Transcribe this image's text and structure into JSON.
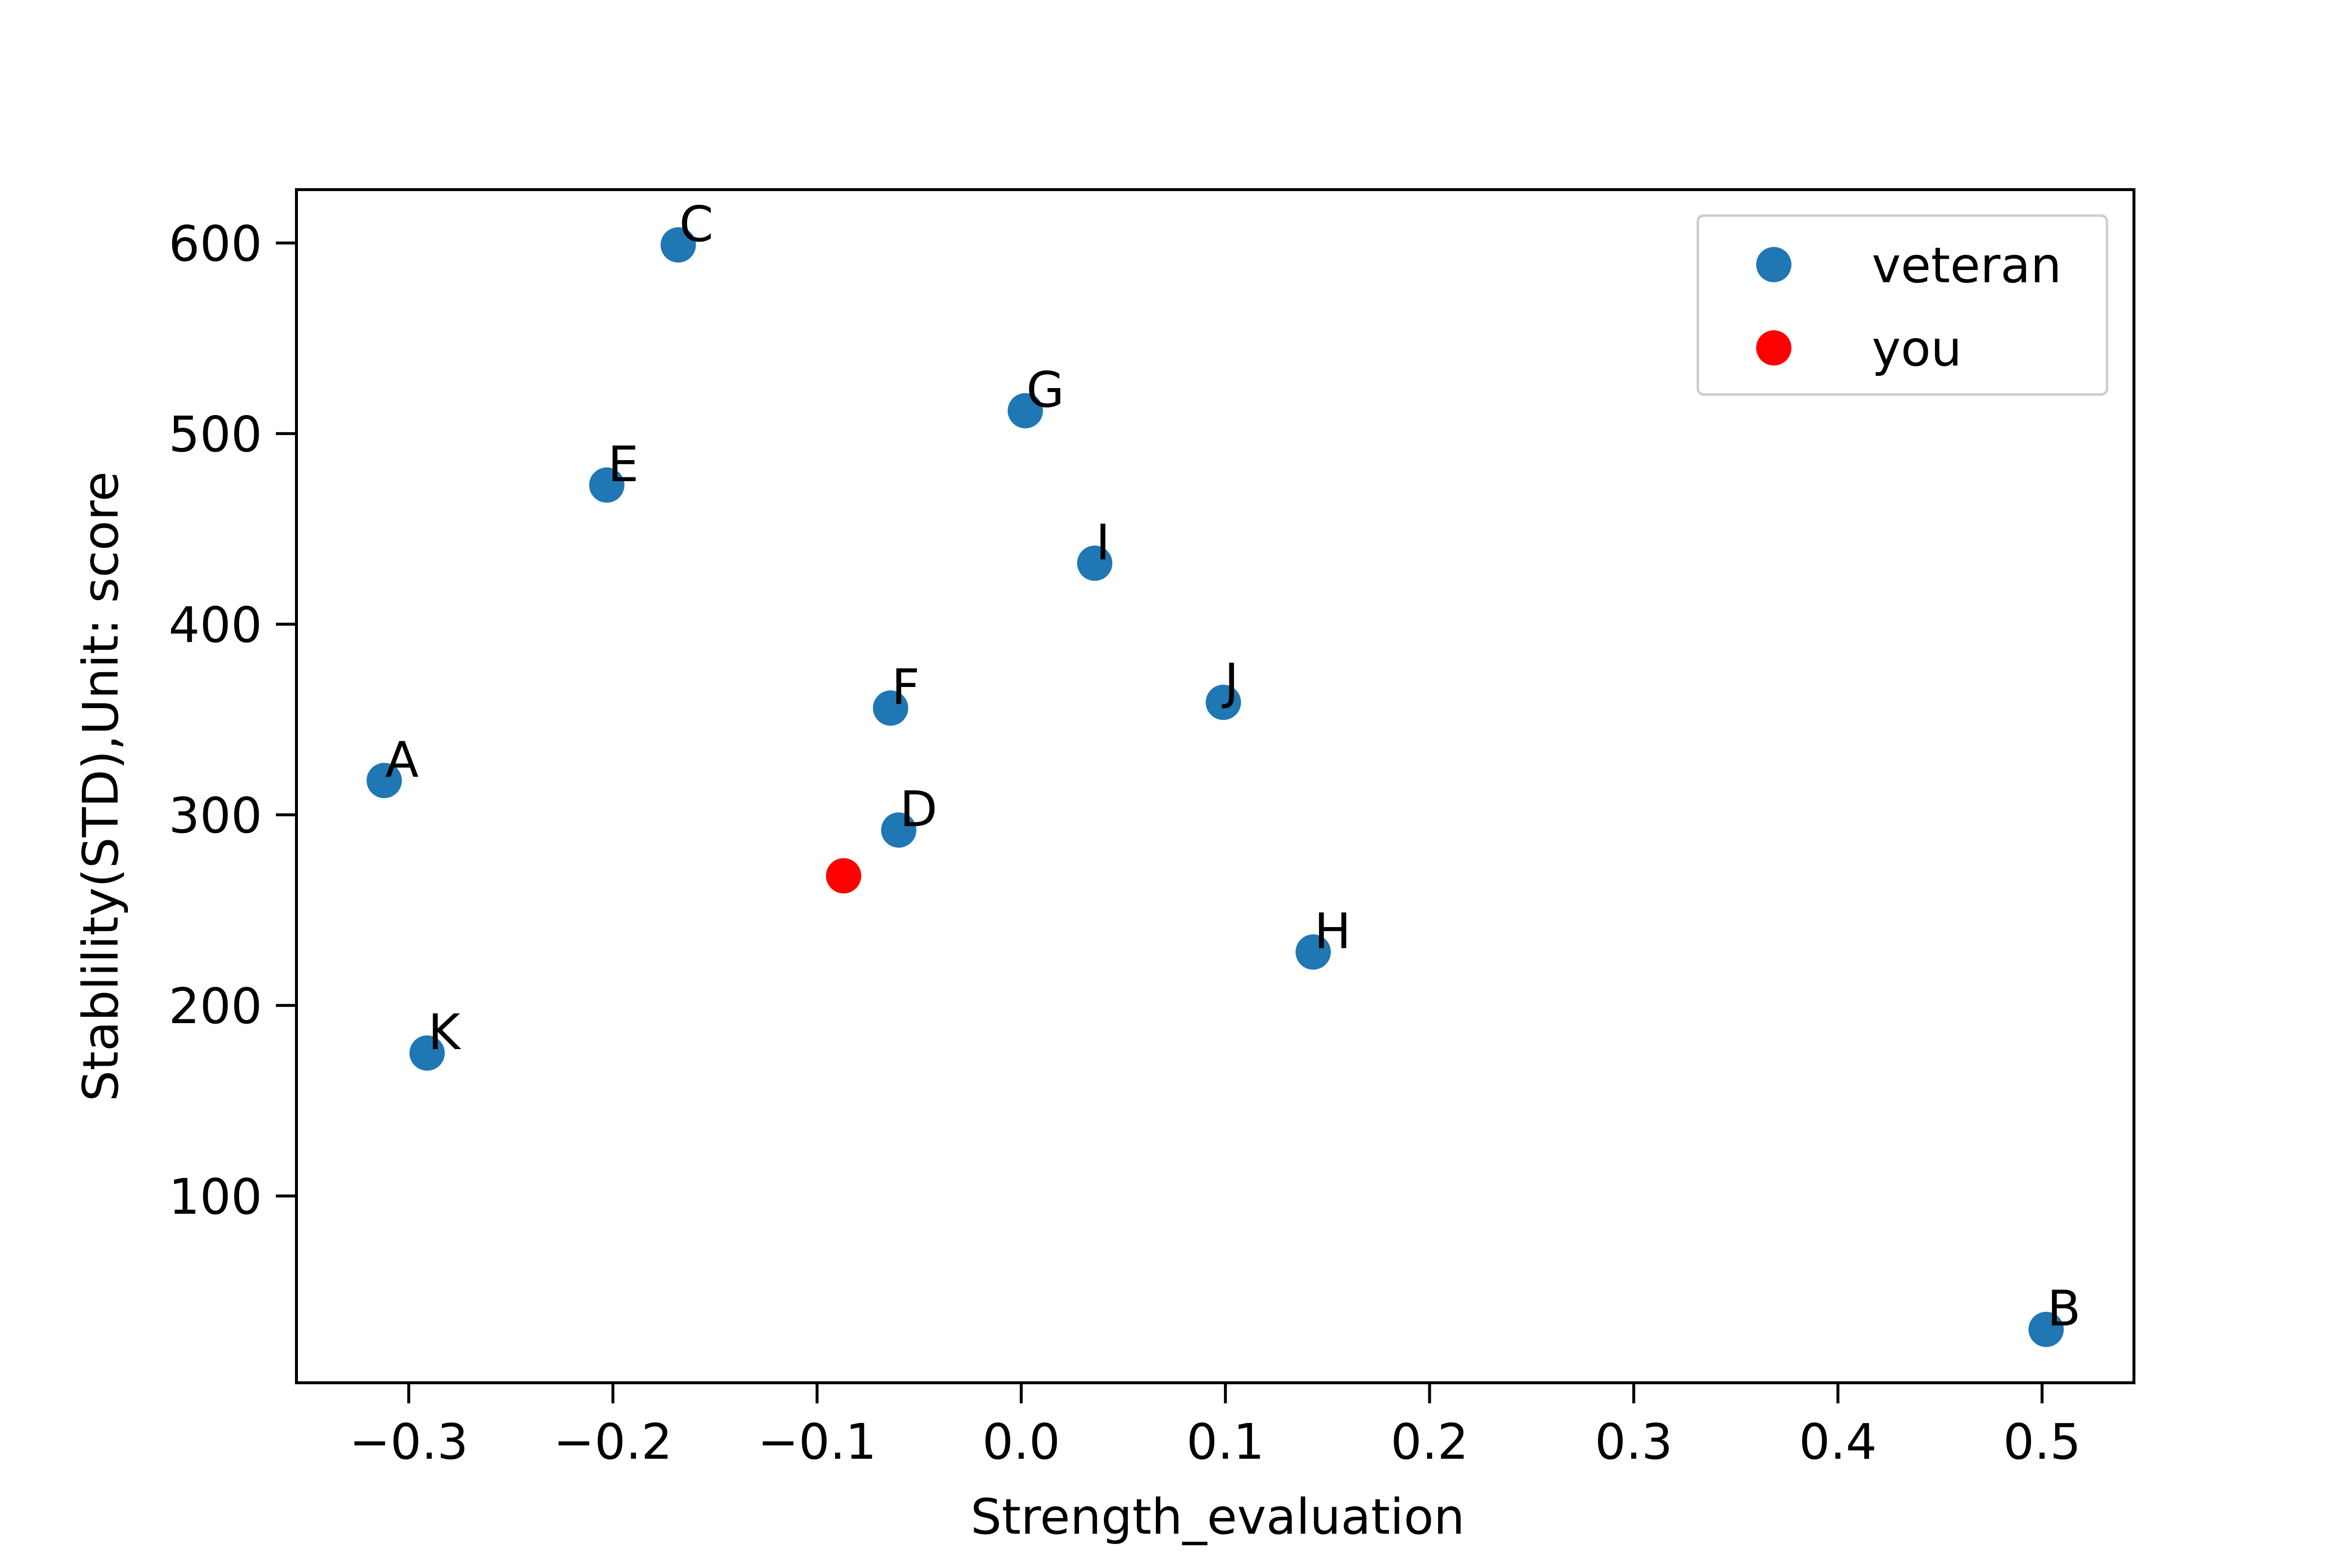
{
  "chart_data": {
    "type": "scatter",
    "title": "",
    "xlabel": "Strength_evaluation",
    "ylabel": "Stablility(STD),Unit: score",
    "xlim": [
      -0.355,
      0.545
    ],
    "ylim": [
      2,
      628
    ],
    "x_ticks": [
      -0.3,
      -0.2,
      -0.1,
      0.0,
      0.1,
      0.2,
      0.3,
      0.4,
      0.5
    ],
    "x_tick_labels": [
      "−0.3",
      "−0.2",
      "−0.1",
      "0.0",
      "0.1",
      "0.2",
      "0.3",
      "0.4",
      "0.5"
    ],
    "y_ticks": [
      100,
      200,
      300,
      400,
      500,
      600
    ],
    "y_tick_labels": [
      "100",
      "200",
      "300",
      "400",
      "500",
      "600"
    ],
    "grid": false,
    "legend_position": "top-right",
    "series": [
      {
        "name": "veteran",
        "color": "#1f77b4",
        "points": [
          {
            "label": "A",
            "x": -0.312,
            "y": 318
          },
          {
            "label": "B",
            "x": 0.502,
            "y": 30
          },
          {
            "label": "C",
            "x": -0.168,
            "y": 599
          },
          {
            "label": "D",
            "x": -0.06,
            "y": 292
          },
          {
            "label": "E",
            "x": -0.203,
            "y": 473
          },
          {
            "label": "F",
            "x": -0.064,
            "y": 356
          },
          {
            "label": "G",
            "x": 0.002,
            "y": 512
          },
          {
            "label": "H",
            "x": 0.143,
            "y": 228
          },
          {
            "label": "I",
            "x": 0.036,
            "y": 432
          },
          {
            "label": "J",
            "x": 0.099,
            "y": 359
          },
          {
            "label": "K",
            "x": -0.291,
            "y": 175
          }
        ]
      },
      {
        "name": "you",
        "color": "#ff0000",
        "points": [
          {
            "label": "",
            "x": -0.087,
            "y": 268
          }
        ]
      }
    ]
  }
}
